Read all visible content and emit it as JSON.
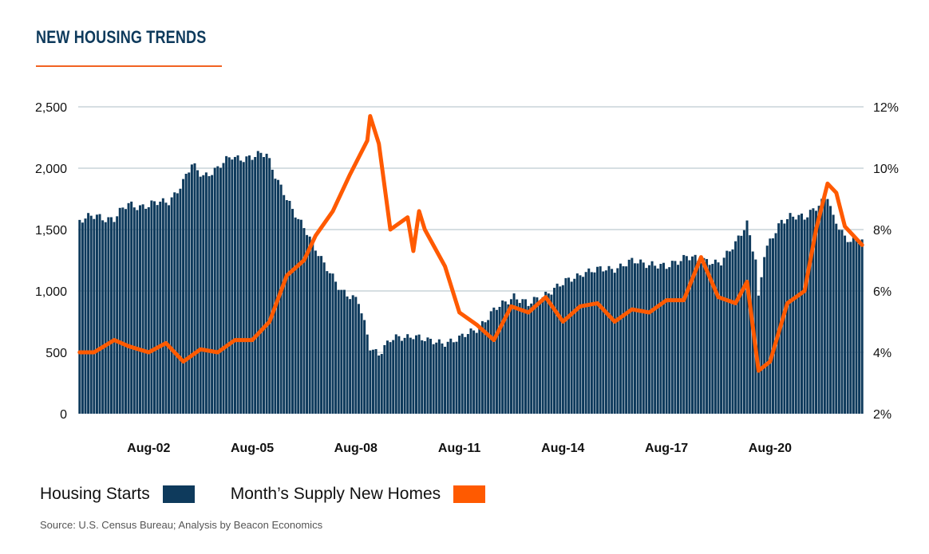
{
  "title": "NEW HOUSING TRENDS",
  "source": "Source: U.S. Census Bureau; Analysis by Beacon Economics",
  "colors": {
    "bars": "#0e3a5c",
    "line": "#ff5a00",
    "title": "#0e3a5c",
    "rule": "#f26322",
    "grid": "#c9d3d8"
  },
  "chart_data": {
    "type": "bar",
    "title": "NEW HOUSING TRENDS",
    "xlabel": "",
    "ylabel": "",
    "x_start": "2000-08",
    "x_end": "2023-04",
    "x_ticks": [
      "Aug-02",
      "Aug-05",
      "Aug-08",
      "Aug-11",
      "Aug-14",
      "Aug-17",
      "Aug-20"
    ],
    "y_left": {
      "lim": [
        0,
        2500
      ],
      "ticks": [
        "0",
        "500",
        "1,000",
        "1,500",
        "2,000",
        "2,500"
      ]
    },
    "y_right": {
      "lim": [
        2,
        12
      ],
      "ticks": [
        "2%",
        "4%",
        "6%",
        "8%",
        "10%",
        "12%"
      ]
    },
    "grid": true,
    "legend_position": "bottom-left",
    "series": [
      {
        "name": "Housing Starts",
        "type": "bar",
        "axis": "left",
        "color": "#0e3a5c",
        "anchors": [
          [
            "2000-08",
            1560
          ],
          [
            "2001-02",
            1620
          ],
          [
            "2001-08",
            1580
          ],
          [
            "2002-01",
            1710
          ],
          [
            "2002-08",
            1690
          ],
          [
            "2003-03",
            1740
          ],
          [
            "2003-08",
            1880
          ],
          [
            "2003-11",
            2020
          ],
          [
            "2004-03",
            1950
          ],
          [
            "2004-08",
            1990
          ],
          [
            "2005-01",
            2100
          ],
          [
            "2005-08",
            2080
          ],
          [
            "2006-01",
            2120
          ],
          [
            "2006-06",
            1850
          ],
          [
            "2006-10",
            1640
          ],
          [
            "2007-03",
            1500
          ],
          [
            "2007-09",
            1200
          ],
          [
            "2008-03",
            1020
          ],
          [
            "2008-09",
            900
          ],
          [
            "2009-01",
            550
          ],
          [
            "2009-04",
            500
          ],
          [
            "2009-08",
            590
          ],
          [
            "2010-04",
            650
          ],
          [
            "2010-09",
            580
          ],
          [
            "2011-08",
            600
          ],
          [
            "2012-03",
            720
          ],
          [
            "2012-09",
            850
          ],
          [
            "2013-03",
            970
          ],
          [
            "2013-08",
            880
          ],
          [
            "2014-03",
            1000
          ],
          [
            "2014-08",
            1050
          ],
          [
            "2015-03",
            1160
          ],
          [
            "2015-08",
            1160
          ],
          [
            "2016-03",
            1200
          ],
          [
            "2016-08",
            1230
          ],
          [
            "2017-03",
            1230
          ],
          [
            "2017-08",
            1180
          ],
          [
            "2018-03",
            1300
          ],
          [
            "2018-08",
            1230
          ],
          [
            "2019-03",
            1250
          ],
          [
            "2019-08",
            1370
          ],
          [
            "2019-12",
            1560
          ],
          [
            "2020-03",
            1270
          ],
          [
            "2020-04",
            940
          ],
          [
            "2020-06",
            1290
          ],
          [
            "2020-12",
            1580
          ],
          [
            "2021-03",
            1620
          ],
          [
            "2021-08",
            1580
          ],
          [
            "2022-01",
            1720
          ],
          [
            "2022-04",
            1780
          ],
          [
            "2022-06",
            1580
          ],
          [
            "2022-10",
            1430
          ],
          [
            "2023-04",
            1420
          ]
        ]
      },
      {
        "name": "Month’s Supply New Homes",
        "type": "line",
        "axis": "right",
        "color": "#ff5a00",
        "anchors": [
          [
            "2000-08",
            4.0
          ],
          [
            "2001-01",
            4.0
          ],
          [
            "2001-08",
            4.4
          ],
          [
            "2002-01",
            4.2
          ],
          [
            "2002-08",
            4.0
          ],
          [
            "2003-02",
            4.3
          ],
          [
            "2003-08",
            3.7
          ],
          [
            "2004-02",
            4.1
          ],
          [
            "2004-08",
            4.0
          ],
          [
            "2005-02",
            4.4
          ],
          [
            "2005-08",
            4.4
          ],
          [
            "2006-02",
            5.0
          ],
          [
            "2006-08",
            6.5
          ],
          [
            "2007-02",
            7.0
          ],
          [
            "2007-06",
            7.8
          ],
          [
            "2007-12",
            8.6
          ],
          [
            "2008-06",
            9.8
          ],
          [
            "2008-12",
            10.9
          ],
          [
            "2009-01",
            11.7
          ],
          [
            "2009-04",
            10.8
          ],
          [
            "2009-08",
            8.0
          ],
          [
            "2010-02",
            8.4
          ],
          [
            "2010-04",
            7.3
          ],
          [
            "2010-06",
            8.6
          ],
          [
            "2010-08",
            8.0
          ],
          [
            "2011-03",
            6.8
          ],
          [
            "2011-08",
            5.3
          ],
          [
            "2012-02",
            4.9
          ],
          [
            "2012-08",
            4.4
          ],
          [
            "2013-02",
            5.5
          ],
          [
            "2013-08",
            5.3
          ],
          [
            "2014-02",
            5.8
          ],
          [
            "2014-08",
            5.0
          ],
          [
            "2015-02",
            5.5
          ],
          [
            "2015-08",
            5.6
          ],
          [
            "2016-02",
            5.0
          ],
          [
            "2016-08",
            5.4
          ],
          [
            "2017-02",
            5.3
          ],
          [
            "2017-08",
            5.7
          ],
          [
            "2018-02",
            5.7
          ],
          [
            "2018-08",
            7.1
          ],
          [
            "2019-02",
            5.8
          ],
          [
            "2019-08",
            5.6
          ],
          [
            "2019-12",
            6.3
          ],
          [
            "2020-04",
            3.4
          ],
          [
            "2020-08",
            3.7
          ],
          [
            "2021-02",
            5.6
          ],
          [
            "2021-08",
            6.0
          ],
          [
            "2021-12",
            8.0
          ],
          [
            "2022-04",
            9.5
          ],
          [
            "2022-07",
            9.2
          ],
          [
            "2022-10",
            8.1
          ],
          [
            "2023-04",
            7.5
          ]
        ]
      }
    ]
  }
}
